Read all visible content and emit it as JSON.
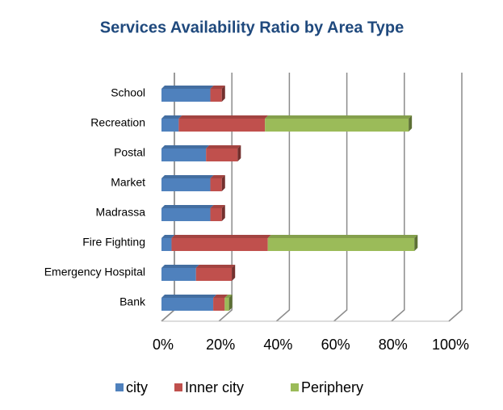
{
  "chart_data": {
    "type": "bar",
    "orientation": "horizontal",
    "stacked": true,
    "title": "Services Availability Ratio by Area Type",
    "categories": [
      "School",
      "Recreation",
      "Postal",
      "Market",
      "Madrassa",
      "Fire Fighting",
      "Emergency Hospital",
      "Bank"
    ],
    "series": [
      {
        "name": "city",
        "color": "#4f81bd",
        "values": [
          17,
          6,
          15.5,
          17,
          17,
          3.5,
          12,
          18
        ]
      },
      {
        "name": "Inner city",
        "color": "#c0504d",
        "values": [
          4,
          30,
          11,
          4,
          4,
          33.5,
          12.5,
          4
        ]
      },
      {
        "name": "Periphery",
        "color": "#9bbb59",
        "values": [
          0,
          50,
          0,
          0,
          0,
          51,
          0,
          1.5
        ]
      }
    ],
    "xlim": [
      0,
      100
    ],
    "xticks": [
      {
        "value": 0,
        "label": "0%"
      },
      {
        "value": 20,
        "label": "20%"
      },
      {
        "value": 40,
        "label": "40%"
      },
      {
        "value": 60,
        "label": "60%"
      },
      {
        "value": 80,
        "label": "80%"
      },
      {
        "value": 100,
        "label": "100%"
      }
    ],
    "grid": true,
    "legend": "bottom"
  }
}
